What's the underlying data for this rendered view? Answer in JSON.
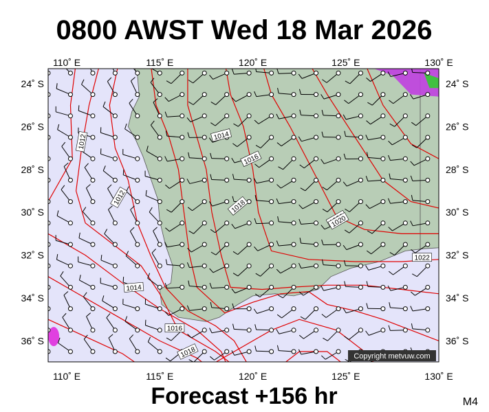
{
  "header": {
    "title": "0800 AWST Wed 18 Mar 2026"
  },
  "axes": {
    "lon_labels": [
      "110˚ E",
      "115˚ E",
      "120˚ E",
      "125˚ E",
      "130˚ E"
    ],
    "lat_labels": [
      "24˚ S",
      "26˚ S",
      "28˚ S",
      "30˚ S",
      "32˚ S",
      "34˚ S",
      "36˚ S"
    ]
  },
  "isobar_labels": [
    "1012",
    "1012",
    "1014",
    "1014",
    "1016",
    "1018",
    "1020",
    "1020",
    "1016",
    "1018",
    "1022"
  ],
  "copyright": "Copyright metvuw.com",
  "footer": {
    "forecast": "Forecast +156 hr",
    "code": "M4"
  }
}
